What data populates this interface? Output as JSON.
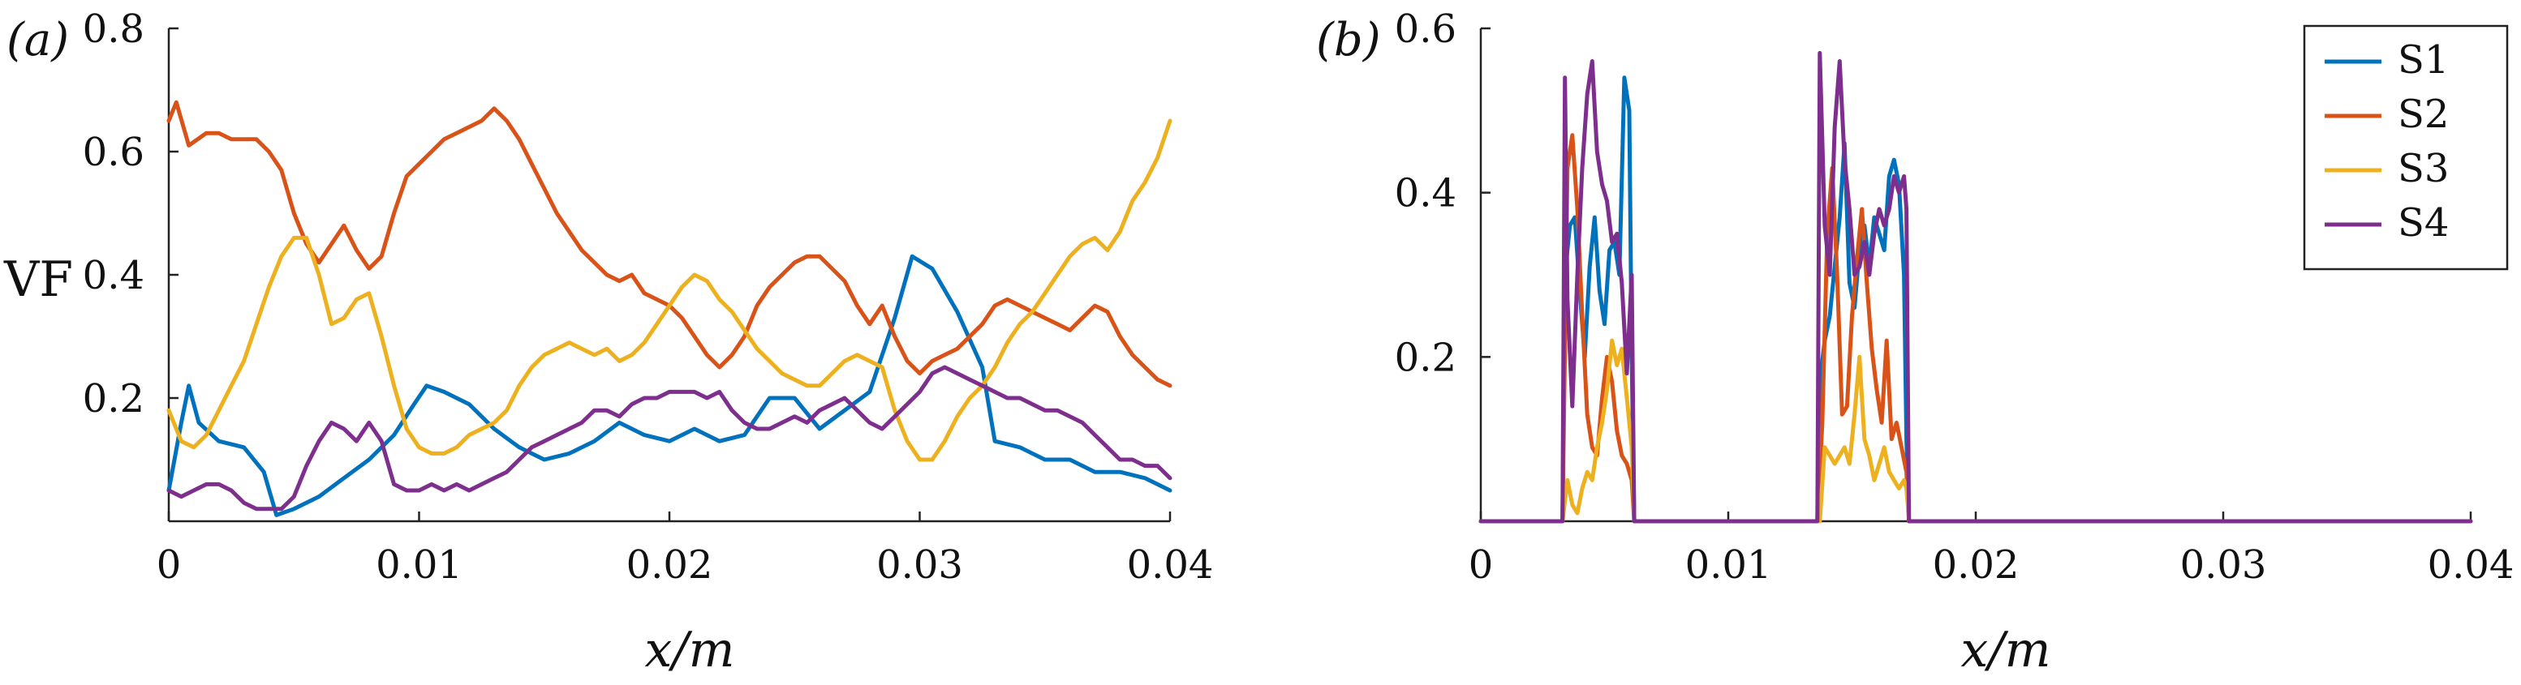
{
  "colors": {
    "S1": "#0072BD",
    "S2": "#D95319",
    "S3": "#EDB120",
    "S4": "#7E2F8E"
  },
  "chart_data": [
    {
      "panel": "(a)",
      "type": "line",
      "xlabel": "x/m",
      "ylabel": "VF",
      "xlim": [
        0,
        0.04
      ],
      "ylim": [
        0,
        0.8
      ],
      "x_ticks": [
        "0",
        "0.01",
        "0.02",
        "0.03",
        "0.04"
      ],
      "y_ticks": [
        "0.2",
        "0.4",
        "0.6",
        "0.8"
      ],
      "x_tick_values": [
        0,
        0.01,
        0.02,
        0.03,
        0.04
      ],
      "y_tick_values": [
        0.2,
        0.4,
        0.6,
        0.8
      ],
      "series": [
        {
          "name": "S1",
          "x": [
            0.0,
            0.0005,
            0.0008,
            0.0012,
            0.002,
            0.003,
            0.0038,
            0.0043,
            0.005,
            0.006,
            0.007,
            0.008,
            0.009,
            0.0098,
            0.0103,
            0.011,
            0.012,
            0.013,
            0.014,
            0.015,
            0.016,
            0.017,
            0.018,
            0.019,
            0.02,
            0.021,
            0.022,
            0.023,
            0.024,
            0.025,
            0.026,
            0.027,
            0.028,
            0.029,
            0.0297,
            0.0305,
            0.0315,
            0.0325,
            0.033,
            0.034,
            0.035,
            0.036,
            0.037,
            0.038,
            0.039,
            0.04
          ],
          "y": [
            0.05,
            0.16,
            0.22,
            0.16,
            0.13,
            0.12,
            0.08,
            0.01,
            0.02,
            0.04,
            0.07,
            0.1,
            0.14,
            0.19,
            0.22,
            0.21,
            0.19,
            0.15,
            0.12,
            0.1,
            0.11,
            0.13,
            0.16,
            0.14,
            0.13,
            0.15,
            0.13,
            0.14,
            0.2,
            0.2,
            0.15,
            0.18,
            0.21,
            0.33,
            0.43,
            0.41,
            0.34,
            0.25,
            0.13,
            0.12,
            0.1,
            0.1,
            0.08,
            0.08,
            0.07,
            0.05
          ]
        },
        {
          "name": "S2",
          "x": [
            0.0,
            0.0003,
            0.0008,
            0.0015,
            0.002,
            0.0025,
            0.003,
            0.0035,
            0.004,
            0.0045,
            0.005,
            0.0055,
            0.006,
            0.0065,
            0.007,
            0.0075,
            0.008,
            0.0085,
            0.009,
            0.0095,
            0.01,
            0.0105,
            0.011,
            0.0115,
            0.012,
            0.0125,
            0.013,
            0.0135,
            0.014,
            0.0145,
            0.015,
            0.0155,
            0.016,
            0.0165,
            0.017,
            0.0175,
            0.018,
            0.0185,
            0.019,
            0.0195,
            0.02,
            0.0205,
            0.021,
            0.0215,
            0.022,
            0.0225,
            0.023,
            0.0235,
            0.024,
            0.0245,
            0.025,
            0.0255,
            0.026,
            0.0265,
            0.027,
            0.0275,
            0.028,
            0.0285,
            0.029,
            0.0295,
            0.03,
            0.0305,
            0.031,
            0.0315,
            0.032,
            0.0325,
            0.033,
            0.0335,
            0.034,
            0.0345,
            0.035,
            0.0355,
            0.036,
            0.0365,
            0.037,
            0.0375,
            0.038,
            0.0385,
            0.039,
            0.0395,
            0.04
          ],
          "y": [
            0.65,
            0.68,
            0.61,
            0.63,
            0.63,
            0.62,
            0.62,
            0.62,
            0.6,
            0.57,
            0.5,
            0.45,
            0.42,
            0.45,
            0.48,
            0.44,
            0.41,
            0.43,
            0.5,
            0.56,
            0.58,
            0.6,
            0.62,
            0.63,
            0.64,
            0.65,
            0.67,
            0.65,
            0.62,
            0.58,
            0.54,
            0.5,
            0.47,
            0.44,
            0.42,
            0.4,
            0.39,
            0.4,
            0.37,
            0.36,
            0.35,
            0.33,
            0.3,
            0.27,
            0.25,
            0.27,
            0.3,
            0.35,
            0.38,
            0.4,
            0.42,
            0.43,
            0.43,
            0.41,
            0.39,
            0.35,
            0.32,
            0.35,
            0.3,
            0.26,
            0.24,
            0.26,
            0.27,
            0.28,
            0.3,
            0.32,
            0.35,
            0.36,
            0.35,
            0.34,
            0.33,
            0.32,
            0.31,
            0.33,
            0.35,
            0.34,
            0.3,
            0.27,
            0.25,
            0.23,
            0.22
          ]
        },
        {
          "name": "S3",
          "x": [
            0.0,
            0.0005,
            0.001,
            0.0015,
            0.002,
            0.0025,
            0.003,
            0.0035,
            0.004,
            0.0045,
            0.005,
            0.0055,
            0.006,
            0.0065,
            0.007,
            0.0075,
            0.008,
            0.0085,
            0.009,
            0.0095,
            0.01,
            0.0105,
            0.011,
            0.0115,
            0.012,
            0.0125,
            0.013,
            0.0135,
            0.014,
            0.0145,
            0.015,
            0.0155,
            0.016,
            0.0165,
            0.017,
            0.0175,
            0.018,
            0.0185,
            0.019,
            0.0195,
            0.02,
            0.0205,
            0.021,
            0.0215,
            0.022,
            0.0225,
            0.023,
            0.0235,
            0.024,
            0.0245,
            0.025,
            0.0255,
            0.026,
            0.0265,
            0.027,
            0.0275,
            0.028,
            0.0285,
            0.029,
            0.0295,
            0.03,
            0.0305,
            0.031,
            0.0315,
            0.032,
            0.0325,
            0.033,
            0.0335,
            0.034,
            0.0345,
            0.035,
            0.0355,
            0.036,
            0.0365,
            0.037,
            0.0375,
            0.038,
            0.0385,
            0.039,
            0.0395,
            0.04
          ],
          "y": [
            0.18,
            0.13,
            0.12,
            0.14,
            0.18,
            0.22,
            0.26,
            0.32,
            0.38,
            0.43,
            0.46,
            0.46,
            0.4,
            0.32,
            0.33,
            0.36,
            0.37,
            0.3,
            0.22,
            0.15,
            0.12,
            0.11,
            0.11,
            0.12,
            0.14,
            0.15,
            0.16,
            0.18,
            0.22,
            0.25,
            0.27,
            0.28,
            0.29,
            0.28,
            0.27,
            0.28,
            0.26,
            0.27,
            0.29,
            0.32,
            0.35,
            0.38,
            0.4,
            0.39,
            0.36,
            0.34,
            0.31,
            0.28,
            0.26,
            0.24,
            0.23,
            0.22,
            0.22,
            0.24,
            0.26,
            0.27,
            0.26,
            0.25,
            0.18,
            0.13,
            0.1,
            0.1,
            0.13,
            0.17,
            0.2,
            0.22,
            0.25,
            0.29,
            0.32,
            0.34,
            0.37,
            0.4,
            0.43,
            0.45,
            0.46,
            0.44,
            0.47,
            0.52,
            0.55,
            0.59,
            0.65
          ]
        },
        {
          "name": "S4",
          "x": [
            0.0,
            0.0005,
            0.001,
            0.0015,
            0.002,
            0.0025,
            0.003,
            0.0035,
            0.004,
            0.0045,
            0.005,
            0.0055,
            0.006,
            0.0065,
            0.007,
            0.0075,
            0.008,
            0.0085,
            0.009,
            0.0095,
            0.01,
            0.0105,
            0.011,
            0.0115,
            0.012,
            0.0125,
            0.013,
            0.0135,
            0.014,
            0.0145,
            0.015,
            0.0155,
            0.016,
            0.0165,
            0.017,
            0.0175,
            0.018,
            0.0185,
            0.019,
            0.0195,
            0.02,
            0.0205,
            0.021,
            0.0215,
            0.022,
            0.0225,
            0.023,
            0.0235,
            0.024,
            0.0245,
            0.025,
            0.0255,
            0.026,
            0.0265,
            0.027,
            0.0275,
            0.028,
            0.0285,
            0.029,
            0.0295,
            0.03,
            0.0305,
            0.031,
            0.0315,
            0.032,
            0.0325,
            0.033,
            0.0335,
            0.034,
            0.0345,
            0.035,
            0.0355,
            0.036,
            0.0365,
            0.037,
            0.0375,
            0.038,
            0.0385,
            0.039,
            0.0395,
            0.04
          ],
          "y": [
            0.05,
            0.04,
            0.05,
            0.06,
            0.06,
            0.05,
            0.03,
            0.02,
            0.02,
            0.02,
            0.04,
            0.09,
            0.13,
            0.16,
            0.15,
            0.13,
            0.16,
            0.13,
            0.06,
            0.05,
            0.05,
            0.06,
            0.05,
            0.06,
            0.05,
            0.06,
            0.07,
            0.08,
            0.1,
            0.12,
            0.13,
            0.14,
            0.15,
            0.16,
            0.18,
            0.18,
            0.17,
            0.19,
            0.2,
            0.2,
            0.21,
            0.21,
            0.21,
            0.2,
            0.21,
            0.18,
            0.16,
            0.15,
            0.15,
            0.16,
            0.17,
            0.16,
            0.18,
            0.19,
            0.2,
            0.18,
            0.16,
            0.15,
            0.17,
            0.19,
            0.21,
            0.24,
            0.25,
            0.24,
            0.23,
            0.22,
            0.21,
            0.2,
            0.2,
            0.19,
            0.18,
            0.18,
            0.17,
            0.16,
            0.14,
            0.12,
            0.1,
            0.1,
            0.09,
            0.09,
            0.07
          ]
        }
      ]
    },
    {
      "panel": "(b)",
      "type": "line",
      "xlabel": "x/m",
      "ylabel": "",
      "xlim": [
        0,
        0.04
      ],
      "ylim": [
        0,
        0.6
      ],
      "x_ticks": [
        "0",
        "0.01",
        "0.02",
        "0.03",
        "0.04"
      ],
      "y_ticks": [
        "0.2",
        "0.4",
        "0.6"
      ],
      "x_tick_values": [
        0,
        0.01,
        0.02,
        0.03,
        0.04
      ],
      "y_tick_values": [
        0.2,
        0.4,
        0.6
      ],
      "legend": [
        "S1",
        "S2",
        "S3",
        "S4"
      ],
      "legend_position": "top-right",
      "series": [
        {
          "name": "S1",
          "x": [
            0.0,
            0.0033,
            0.0034,
            0.0036,
            0.0038,
            0.004,
            0.0042,
            0.0044,
            0.0046,
            0.0048,
            0.005,
            0.0052,
            0.0054,
            0.0056,
            0.0058,
            0.006,
            0.0061,
            0.0062,
            0.0136,
            0.0137,
            0.0139,
            0.0141,
            0.0143,
            0.0145,
            0.0147,
            0.0149,
            0.0151,
            0.0153,
            0.0155,
            0.0157,
            0.0159,
            0.0161,
            0.0163,
            0.0165,
            0.0167,
            0.0169,
            0.0171,
            0.0172,
            0.0173,
            0.04
          ],
          "y": [
            0.0,
            0.0,
            0.3,
            0.36,
            0.37,
            0.28,
            0.2,
            0.31,
            0.37,
            0.28,
            0.24,
            0.33,
            0.34,
            0.3,
            0.54,
            0.5,
            0.2,
            0.0,
            0.0,
            0.17,
            0.22,
            0.25,
            0.31,
            0.37,
            0.46,
            0.29,
            0.26,
            0.33,
            0.36,
            0.31,
            0.37,
            0.35,
            0.33,
            0.42,
            0.44,
            0.41,
            0.3,
            0.1,
            0.0,
            0.0
          ]
        },
        {
          "name": "S2",
          "x": [
            0.0,
            0.0033,
            0.0035,
            0.0037,
            0.0039,
            0.0041,
            0.0043,
            0.0045,
            0.0047,
            0.0049,
            0.0051,
            0.0053,
            0.0055,
            0.0057,
            0.0059,
            0.0061,
            0.0062,
            0.0136,
            0.0138,
            0.014,
            0.0142,
            0.0144,
            0.0146,
            0.0148,
            0.015,
            0.0152,
            0.0154,
            0.0156,
            0.0158,
            0.016,
            0.0162,
            0.0164,
            0.0166,
            0.0168,
            0.017,
            0.0172,
            0.0173,
            0.04
          ],
          "y": [
            0.0,
            0.0,
            0.43,
            0.47,
            0.38,
            0.25,
            0.13,
            0.09,
            0.08,
            0.15,
            0.2,
            0.17,
            0.11,
            0.08,
            0.07,
            0.05,
            0.0,
            0.0,
            0.12,
            0.35,
            0.43,
            0.3,
            0.13,
            0.14,
            0.25,
            0.32,
            0.38,
            0.29,
            0.21,
            0.16,
            0.12,
            0.22,
            0.1,
            0.12,
            0.09,
            0.06,
            0.0,
            0.0
          ]
        },
        {
          "name": "S3",
          "x": [
            0.0,
            0.0033,
            0.0035,
            0.0037,
            0.0039,
            0.0041,
            0.0043,
            0.0045,
            0.0047,
            0.0049,
            0.0051,
            0.0053,
            0.0055,
            0.0057,
            0.0059,
            0.0061,
            0.0062,
            0.0137,
            0.0139,
            0.0141,
            0.0143,
            0.0145,
            0.0147,
            0.0149,
            0.0151,
            0.0153,
            0.0155,
            0.0157,
            0.0159,
            0.0161,
            0.0163,
            0.0165,
            0.0167,
            0.0169,
            0.0171,
            0.0172,
            0.0173,
            0.04
          ],
          "y": [
            0.0,
            0.0,
            0.05,
            0.02,
            0.01,
            0.04,
            0.06,
            0.05,
            0.09,
            0.12,
            0.16,
            0.22,
            0.19,
            0.21,
            0.15,
            0.09,
            0.0,
            0.0,
            0.09,
            0.08,
            0.07,
            0.08,
            0.09,
            0.07,
            0.13,
            0.2,
            0.1,
            0.08,
            0.05,
            0.07,
            0.09,
            0.06,
            0.05,
            0.04,
            0.05,
            0.04,
            0.0,
            0.0
          ]
        },
        {
          "name": "S4",
          "x": [
            0.0,
            0.0033,
            0.0034,
            0.0035,
            0.0037,
            0.0039,
            0.0041,
            0.0043,
            0.0045,
            0.0047,
            0.0049,
            0.0051,
            0.0053,
            0.0055,
            0.0057,
            0.0059,
            0.0061,
            0.0062,
            0.0136,
            0.0137,
            0.0139,
            0.0141,
            0.0143,
            0.0145,
            0.0147,
            0.0149,
            0.0151,
            0.0153,
            0.0155,
            0.0157,
            0.0159,
            0.0161,
            0.0163,
            0.0165,
            0.0167,
            0.0169,
            0.0171,
            0.0172,
            0.0173,
            0.04
          ],
          "y": [
            0.0,
            0.0,
            0.54,
            0.27,
            0.14,
            0.3,
            0.43,
            0.52,
            0.56,
            0.45,
            0.41,
            0.39,
            0.34,
            0.35,
            0.29,
            0.18,
            0.3,
            0.0,
            0.0,
            0.57,
            0.36,
            0.3,
            0.48,
            0.56,
            0.44,
            0.38,
            0.3,
            0.31,
            0.34,
            0.3,
            0.35,
            0.38,
            0.36,
            0.38,
            0.42,
            0.4,
            0.42,
            0.38,
            0.0,
            0.0
          ]
        }
      ]
    }
  ]
}
